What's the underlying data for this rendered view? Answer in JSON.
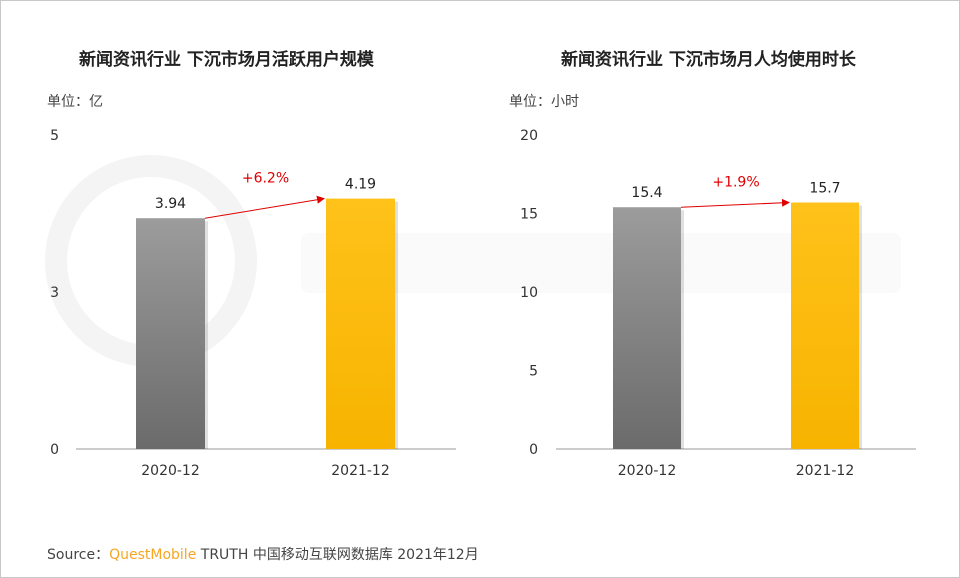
{
  "watermark": "QUEST MOBILE",
  "source": {
    "label": "Source：",
    "brand": "QuestMobile",
    "rest": "TRUTH 中国移动互联网数据库 2021年12月"
  },
  "chart_data": [
    {
      "type": "bar",
      "title": "新闻资讯行业 下沉市场月活跃用户规模",
      "unit": "单位：亿",
      "categories": [
        "2020-12",
        "2021-12"
      ],
      "values": [
        3.94,
        4.19
      ],
      "data_labels": [
        "3.94",
        "4.19"
      ],
      "yticks": [
        0,
        3,
        5
      ],
      "ylim": [
        0,
        5
      ],
      "growth_label": "+6.2%",
      "colors": [
        "#808080",
        "#ffc000"
      ],
      "growth_color": "#e00000"
    },
    {
      "type": "bar",
      "title": "新闻资讯行业 下沉市场月人均使用时长",
      "unit": "单位：小时",
      "categories": [
        "2020-12",
        "2021-12"
      ],
      "values": [
        15.4,
        15.7
      ],
      "data_labels": [
        "15.4",
        "15.7"
      ],
      "yticks": [
        0,
        5,
        10,
        15,
        20
      ],
      "ylim": [
        0,
        20
      ],
      "growth_label": "+1.9%",
      "colors": [
        "#808080",
        "#ffc000"
      ],
      "growth_color": "#e00000"
    }
  ]
}
